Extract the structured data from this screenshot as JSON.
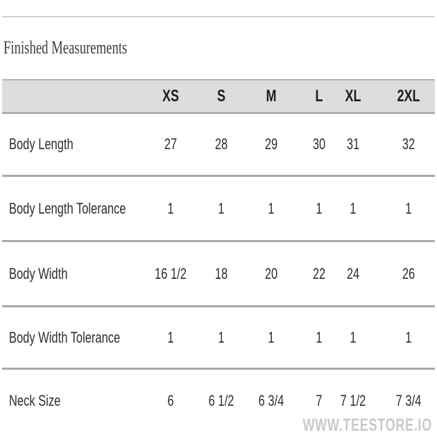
{
  "page": {
    "title": "Finished Measurements",
    "watermark": "WWW.TEESTORE.IO"
  },
  "table": {
    "columns": [
      "XS",
      "S",
      "M",
      "L",
      "XL",
      "2XL"
    ],
    "rows": [
      {
        "label": "Body Length",
        "values": [
          "27",
          "28",
          "29",
          "30",
          "31",
          "32"
        ]
      },
      {
        "label": "Body Length Tolerance",
        "values": [
          "1",
          "1",
          "1",
          "1",
          "1",
          "1"
        ]
      },
      {
        "label": "Body Width",
        "values": [
          "16 1/2",
          "18",
          "20",
          "22",
          "24",
          "26"
        ]
      },
      {
        "label": "Body Width Tolerance",
        "values": [
          "1",
          "1",
          "1",
          "1",
          "1",
          "1"
        ]
      },
      {
        "label": "Neck Size",
        "values": [
          "6",
          "6 1/2",
          "6 3/4",
          "7",
          "7 1/2",
          "7 3/4"
        ]
      }
    ]
  },
  "colors": {
    "header_background": "#dddddd",
    "header_border_top": "#b3b3b3",
    "header_border_bottom": "#9a9a9a",
    "row_divider": "#a8a8a8",
    "top_rule": "#d0d0d0",
    "body_text": "#2d2d2d",
    "header_text": "#1c1c1c",
    "title_text": "#3e3e3e",
    "watermark_text": "#c9c9c9"
  }
}
